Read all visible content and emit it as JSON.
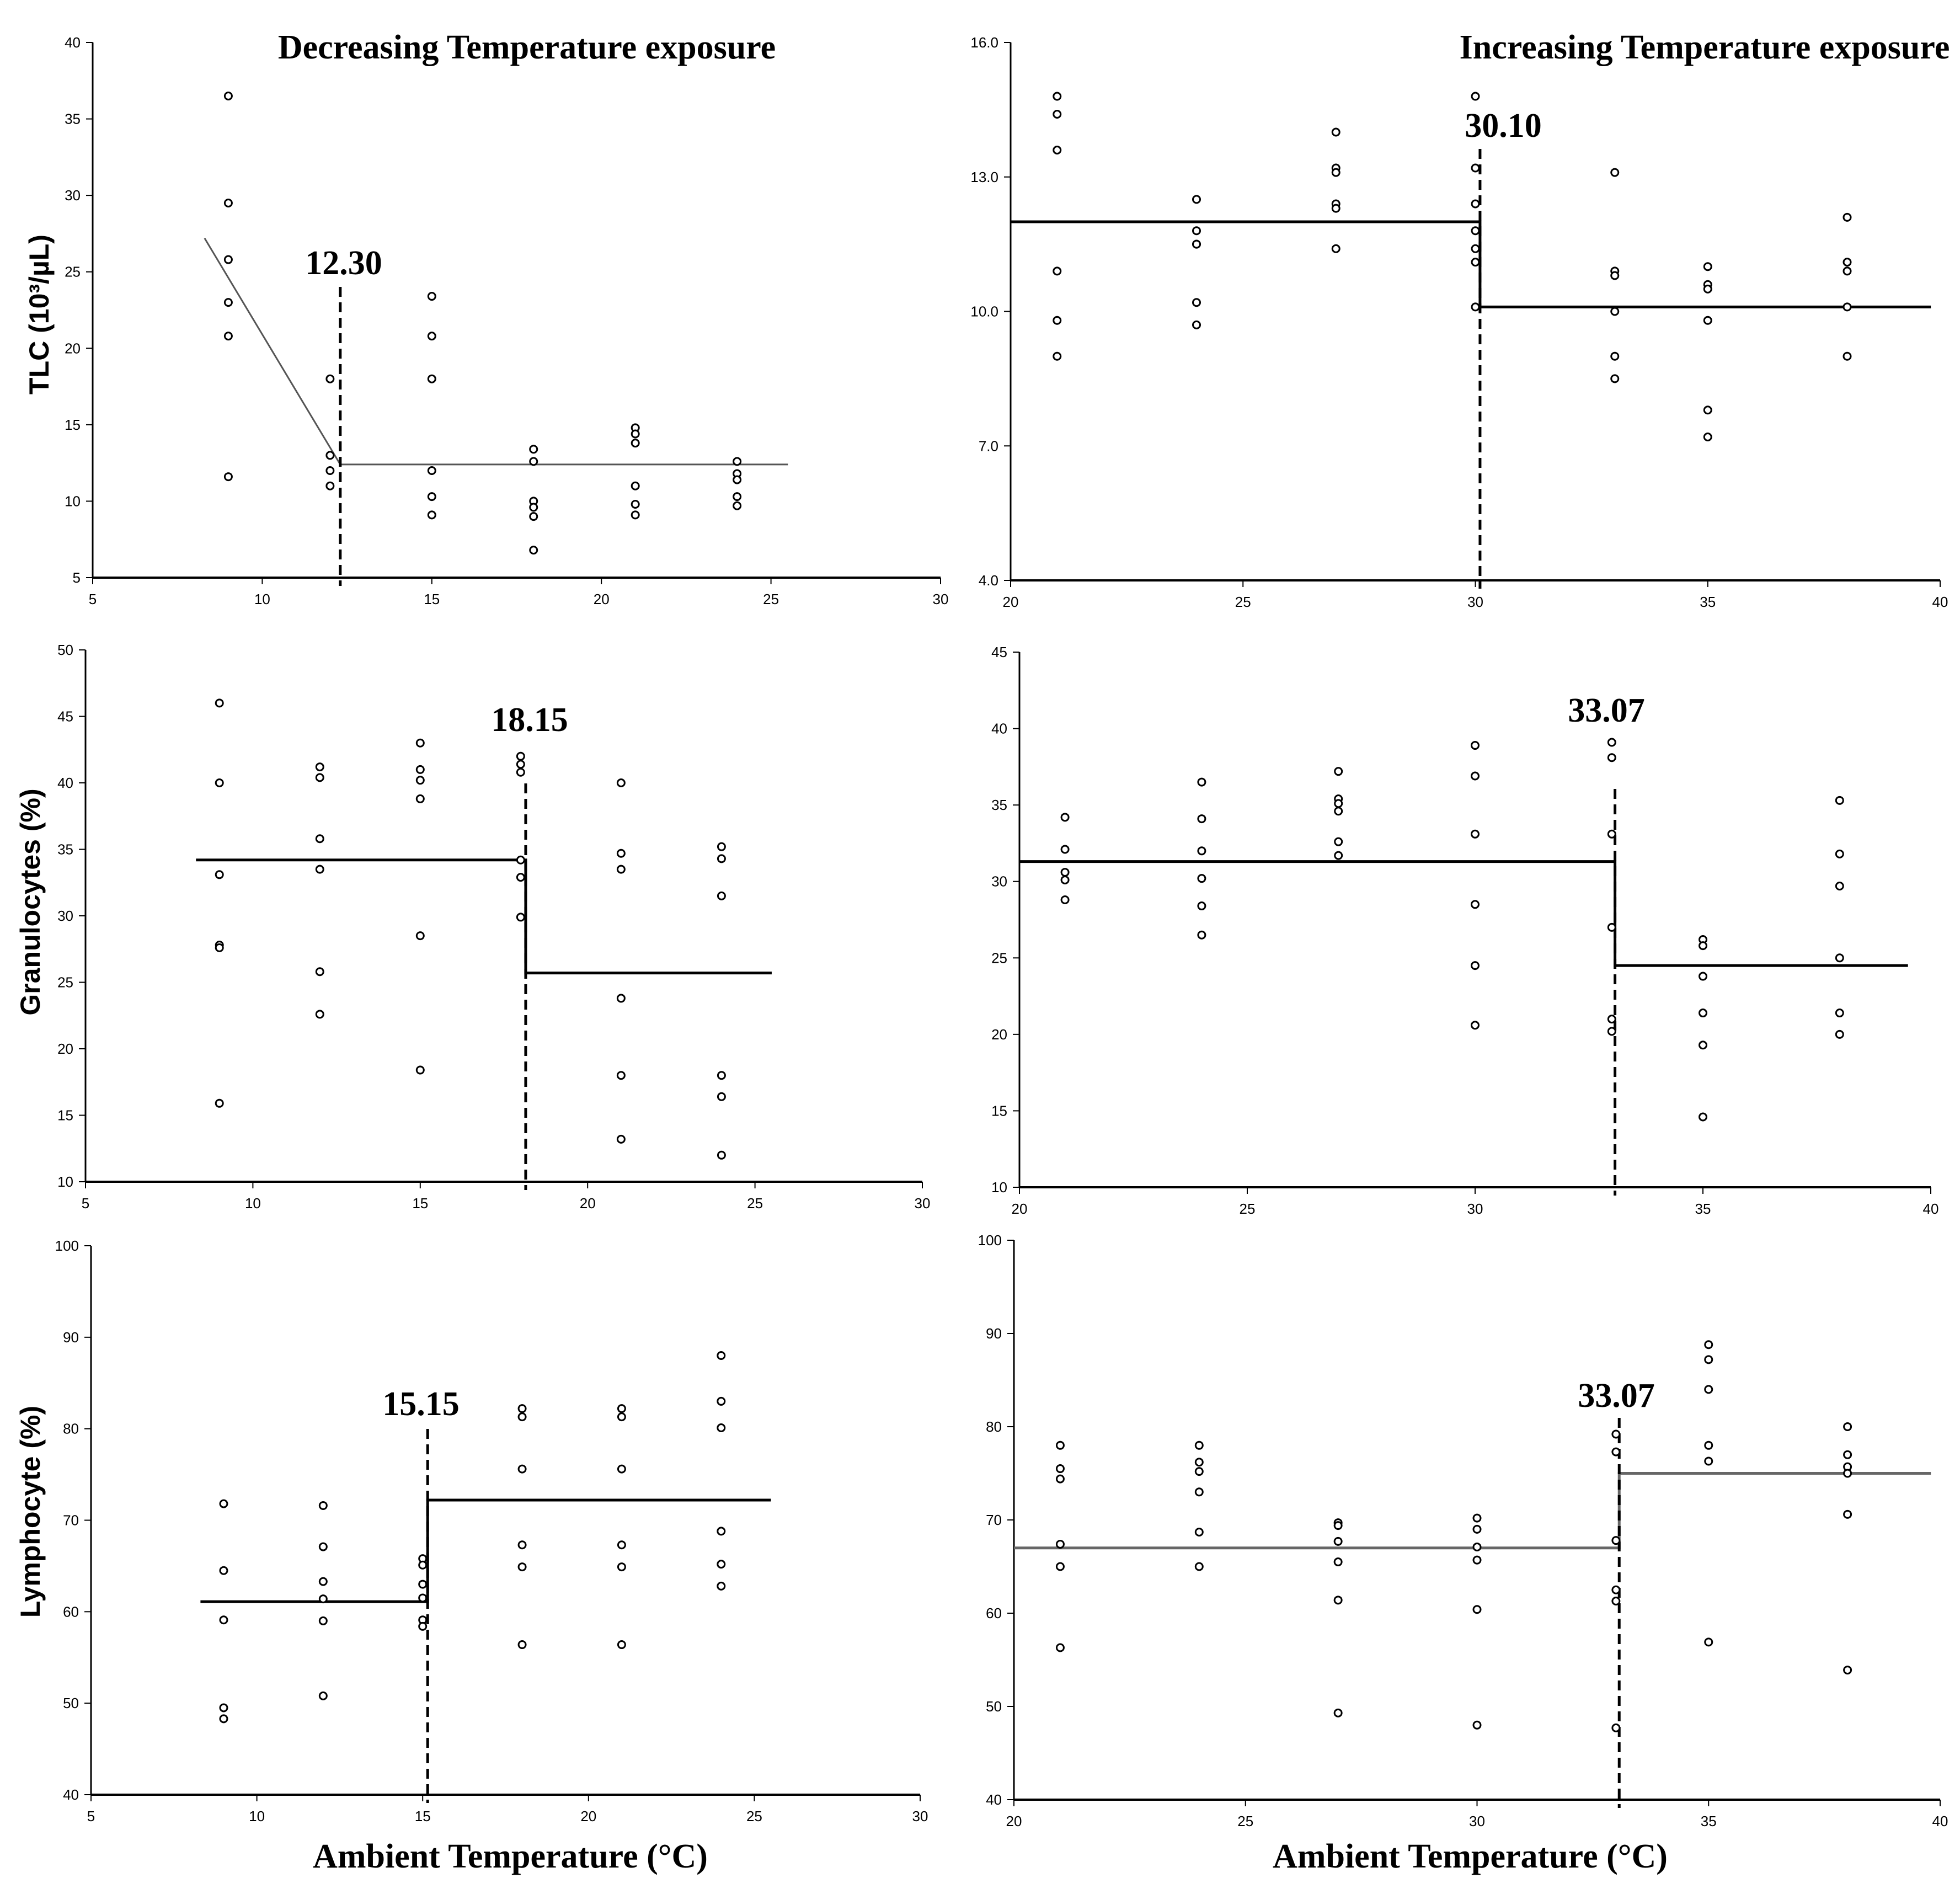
{
  "x_title": "Ambient Temperature (°C)",
  "chart_data": [
    {
      "id": "p1",
      "type": "scatter",
      "title": "Decreasing Temperature exposure",
      "ylabel": "TLC (10³/µL)",
      "xlabel": "",
      "xlim": [
        5,
        30
      ],
      "ylim": [
        5,
        40
      ],
      "xticks": [
        "5",
        "10",
        "15",
        "20",
        "25",
        "30"
      ],
      "yticks": [
        "5",
        "10",
        "15",
        "20",
        "25",
        "30",
        "35",
        "40"
      ],
      "breakpoint": 12.3,
      "breakpoint_label": "12.30",
      "line_color": "#555555",
      "fit": [
        [
          8.3,
          27.2
        ],
        [
          12.3,
          12.4
        ],
        [
          25.5,
          12.4
        ]
      ],
      "points": [
        [
          9,
          36.5
        ],
        [
          9,
          29.5
        ],
        [
          9,
          25.8
        ],
        [
          9,
          23
        ],
        [
          9,
          20.8
        ],
        [
          9,
          11.6
        ],
        [
          12,
          18
        ],
        [
          12,
          13
        ],
        [
          12,
          12
        ],
        [
          12,
          11
        ],
        [
          15,
          23.4
        ],
        [
          15,
          20.8
        ],
        [
          15,
          18
        ],
        [
          15,
          12
        ],
        [
          15,
          10.3
        ],
        [
          15,
          9.1
        ],
        [
          18,
          13.4
        ],
        [
          18,
          12.6
        ],
        [
          18,
          10
        ],
        [
          18,
          9.6
        ],
        [
          18,
          9
        ],
        [
          18,
          6.8
        ],
        [
          21,
          14.8
        ],
        [
          21,
          14.4
        ],
        [
          21,
          13.8
        ],
        [
          21,
          11
        ],
        [
          21,
          9.8
        ],
        [
          21,
          9.1
        ],
        [
          24,
          12.6
        ],
        [
          24,
          11.8
        ],
        [
          24,
          11.4
        ],
        [
          24,
          10.3
        ],
        [
          24,
          9.7
        ]
      ]
    },
    {
      "id": "p2",
      "type": "scatter",
      "title": "Increasing Temperature exposure",
      "ylabel": "",
      "xlabel": "",
      "xlim": [
        20,
        40
      ],
      "ylim": [
        4,
        16
      ],
      "xticks": [
        "20",
        "25",
        "30",
        "35",
        "40"
      ],
      "yticks": [
        "4.0",
        "7.0",
        "10.0",
        "13.0",
        "16.0"
      ],
      "breakpoint": 30.1,
      "breakpoint_label": "30.10",
      "line_color": "#000000",
      "fit": [
        [
          20,
          12.0
        ],
        [
          30.1,
          12.0
        ],
        [
          30.1,
          10.1
        ],
        [
          39.8,
          10.1
        ]
      ],
      "points": [
        [
          21,
          14.8
        ],
        [
          21,
          14.4
        ],
        [
          21,
          13.6
        ],
        [
          21,
          10.9
        ],
        [
          21,
          9.8
        ],
        [
          21,
          9
        ],
        [
          24,
          12.5
        ],
        [
          24,
          11.8
        ],
        [
          24,
          11.5
        ],
        [
          24,
          11.5
        ],
        [
          24,
          10.2
        ],
        [
          24,
          9.7
        ],
        [
          27,
          14
        ],
        [
          27,
          13.2
        ],
        [
          27,
          13.1
        ],
        [
          27,
          12.4
        ],
        [
          27,
          12.3
        ],
        [
          27,
          11.4
        ],
        [
          30,
          14.8
        ],
        [
          30,
          13.2
        ],
        [
          30,
          12.4
        ],
        [
          30,
          11.8
        ],
        [
          30,
          11.4
        ],
        [
          30,
          11.1
        ],
        [
          30,
          10.1
        ],
        [
          33,
          13.1
        ],
        [
          33,
          10.9
        ],
        [
          33,
          10.8
        ],
        [
          33,
          10
        ],
        [
          33,
          9
        ],
        [
          33,
          8.5
        ],
        [
          35,
          11
        ],
        [
          35,
          10.6
        ],
        [
          35,
          10.5
        ],
        [
          35,
          9.8
        ],
        [
          35,
          7.8
        ],
        [
          35,
          7.2
        ],
        [
          38,
          12.1
        ],
        [
          38,
          11.1
        ],
        [
          38,
          10.9
        ],
        [
          38,
          10.1
        ],
        [
          38,
          9
        ]
      ]
    },
    {
      "id": "p3",
      "type": "scatter",
      "title": "",
      "ylabel": "Granulocytes (%)",
      "xlabel": "",
      "xlim": [
        5,
        30
      ],
      "ylim": [
        10,
        50
      ],
      "xticks": [
        "5",
        "10",
        "15",
        "20",
        "25",
        "30"
      ],
      "yticks": [
        "10",
        "15",
        "20",
        "25",
        "30",
        "35",
        "40",
        "45",
        "50"
      ],
      "breakpoint": 18.15,
      "breakpoint_label": "18.15",
      "line_color": "#000000",
      "fit": [
        [
          8.3,
          34.2
        ],
        [
          18.15,
          34.2
        ],
        [
          18.15,
          25.7
        ],
        [
          25.5,
          25.7
        ]
      ],
      "points": [
        [
          9,
          46
        ],
        [
          9,
          40
        ],
        [
          9,
          33.1
        ],
        [
          9,
          27.8
        ],
        [
          9,
          27.6
        ],
        [
          9,
          15.9
        ],
        [
          12,
          41.2
        ],
        [
          12,
          40.4
        ],
        [
          12,
          35.8
        ],
        [
          12,
          33.5
        ],
        [
          12,
          25.8
        ],
        [
          12,
          22.6
        ],
        [
          15,
          43
        ],
        [
          15,
          41
        ],
        [
          15,
          40.2
        ],
        [
          15,
          38.8
        ],
        [
          15,
          28.5
        ],
        [
          15,
          18.4
        ],
        [
          18,
          42
        ],
        [
          18,
          41.4
        ],
        [
          18,
          40.8
        ],
        [
          18,
          34.2
        ],
        [
          18,
          32.9
        ],
        [
          18,
          29.9
        ],
        [
          21,
          40
        ],
        [
          21,
          34.7
        ],
        [
          21,
          33.5
        ],
        [
          21,
          23.8
        ],
        [
          21,
          18
        ],
        [
          21,
          13.2
        ],
        [
          24,
          35.2
        ],
        [
          24,
          34.3
        ],
        [
          24,
          31.5
        ],
        [
          24,
          18
        ],
        [
          24,
          16.4
        ],
        [
          24,
          12
        ]
      ]
    },
    {
      "id": "p4",
      "type": "scatter",
      "title": "",
      "ylabel": "",
      "xlabel": "",
      "xlim": [
        20,
        40
      ],
      "ylim": [
        10,
        45
      ],
      "xticks": [
        "20",
        "25",
        "30",
        "35",
        "40"
      ],
      "yticks": [
        "10",
        "15",
        "20",
        "25",
        "30",
        "35",
        "40",
        "45"
      ],
      "breakpoint": 33.07,
      "breakpoint_label": "33.07",
      "line_color": "#000000",
      "fit": [
        [
          20,
          31.3
        ],
        [
          33.07,
          31.3
        ],
        [
          33.07,
          24.5
        ],
        [
          39.5,
          24.5
        ]
      ],
      "points": [
        [
          21,
          34.2
        ],
        [
          21,
          32.1
        ],
        [
          21,
          30.6
        ],
        [
          21,
          30.1
        ],
        [
          21,
          28.8
        ],
        [
          24,
          36.5
        ],
        [
          24,
          34.1
        ],
        [
          24,
          32
        ],
        [
          24,
          30.2
        ],
        [
          24,
          28.4
        ],
        [
          24,
          26.5
        ],
        [
          27,
          37.2
        ],
        [
          27,
          35.4
        ],
        [
          27,
          35.1
        ],
        [
          27,
          34.6
        ],
        [
          27,
          32.6
        ],
        [
          27,
          31.7
        ],
        [
          30,
          38.9
        ],
        [
          30,
          36.9
        ],
        [
          30,
          33.1
        ],
        [
          30,
          28.5
        ],
        [
          30,
          24.5
        ],
        [
          30,
          20.6
        ],
        [
          33,
          39.1
        ],
        [
          33,
          38.1
        ],
        [
          33,
          33.1
        ],
        [
          33,
          27
        ],
        [
          33,
          21
        ],
        [
          33,
          20.2
        ],
        [
          35,
          26.2
        ],
        [
          35,
          25.8
        ],
        [
          35,
          23.8
        ],
        [
          35,
          21.4
        ],
        [
          35,
          19.3
        ],
        [
          35,
          14.6
        ],
        [
          38,
          35.3
        ],
        [
          38,
          31.8
        ],
        [
          38,
          29.7
        ],
        [
          38,
          25
        ],
        [
          38,
          21.4
        ],
        [
          38,
          20
        ]
      ]
    },
    {
      "id": "p5",
      "type": "scatter",
      "title": "",
      "ylabel": "Lymphocyte (%)",
      "xlabel": "",
      "xlim": [
        5,
        30
      ],
      "ylim": [
        40,
        100
      ],
      "xticks": [
        "5",
        "10",
        "15",
        "20",
        "25",
        "30"
      ],
      "yticks": [
        "40",
        "50",
        "60",
        "70",
        "80",
        "90",
        "100"
      ],
      "breakpoint": 15.15,
      "breakpoint_label": "15.15",
      "line_color": "#000000",
      "fit": [
        [
          8.3,
          61.1
        ],
        [
          15.15,
          61.1
        ],
        [
          15.15,
          72.2
        ],
        [
          25.5,
          72.2
        ]
      ],
      "points": [
        [
          9,
          71.8
        ],
        [
          9,
          64.5
        ],
        [
          9,
          59.1
        ],
        [
          9,
          49.5
        ],
        [
          9,
          48.3
        ],
        [
          12,
          71.6
        ],
        [
          12,
          67.1
        ],
        [
          12,
          63.3
        ],
        [
          12,
          61.4
        ],
        [
          12,
          59
        ],
        [
          12,
          50.8
        ],
        [
          15,
          65.8
        ],
        [
          15,
          65.1
        ],
        [
          15,
          63
        ],
        [
          15,
          61.5
        ],
        [
          15,
          59.1
        ],
        [
          15,
          58.4
        ],
        [
          18,
          82.2
        ],
        [
          18,
          81.3
        ],
        [
          18,
          75.6
        ],
        [
          18,
          67.3
        ],
        [
          18,
          64.9
        ],
        [
          18,
          56.4
        ],
        [
          21,
          82.2
        ],
        [
          21,
          81.3
        ],
        [
          21,
          75.6
        ],
        [
          21,
          67.3
        ],
        [
          21,
          64.9
        ],
        [
          21,
          56.4
        ],
        [
          24,
          88
        ],
        [
          24,
          83
        ],
        [
          24,
          80.1
        ],
        [
          24,
          68.8
        ],
        [
          24,
          65.2
        ],
        [
          24,
          62.8
        ]
      ]
    },
    {
      "id": "p6",
      "type": "scatter",
      "title": "",
      "ylabel": "",
      "xlabel": "",
      "xlim": [
        20,
        40
      ],
      "ylim": [
        40,
        100
      ],
      "xticks": [
        "20",
        "25",
        "30",
        "35",
        "40"
      ],
      "yticks": [
        "40",
        "50",
        "60",
        "70",
        "80",
        "90",
        "100"
      ],
      "breakpoint": 33.07,
      "breakpoint_label": "33.07",
      "line_color": "#666666",
      "fit": [
        [
          20,
          67
        ],
        [
          33.07,
          67
        ],
        [
          33.07,
          75
        ],
        [
          39.8,
          75
        ]
      ],
      "points": [
        [
          21,
          78
        ],
        [
          21,
          75.5
        ],
        [
          21,
          74.4
        ],
        [
          21,
          67.4
        ],
        [
          21,
          65
        ],
        [
          21,
          56.3
        ],
        [
          24,
          78
        ],
        [
          24,
          76.2
        ],
        [
          24,
          75.2
        ],
        [
          24,
          73
        ],
        [
          24,
          68.7
        ],
        [
          24,
          65
        ],
        [
          27,
          69.7
        ],
        [
          27,
          69.4
        ],
        [
          27,
          67.7
        ],
        [
          27,
          65.5
        ],
        [
          27,
          61.4
        ],
        [
          27,
          49.3
        ],
        [
          30,
          70.2
        ],
        [
          30,
          69
        ],
        [
          30,
          67.1
        ],
        [
          30,
          65.7
        ],
        [
          30,
          60.4
        ],
        [
          30,
          48
        ],
        [
          33,
          79.2
        ],
        [
          33,
          77.3
        ],
        [
          33,
          67.8
        ],
        [
          33,
          62.5
        ],
        [
          33,
          61.3
        ],
        [
          33,
          47.7
        ],
        [
          35,
          88.8
        ],
        [
          35,
          87.2
        ],
        [
          35,
          84
        ],
        [
          35,
          78
        ],
        [
          35,
          76.3
        ],
        [
          35,
          56.9
        ],
        [
          38,
          80
        ],
        [
          38,
          77
        ],
        [
          38,
          75.7
        ],
        [
          38,
          75
        ],
        [
          38,
          70.6
        ],
        [
          38,
          53.9
        ]
      ]
    }
  ]
}
